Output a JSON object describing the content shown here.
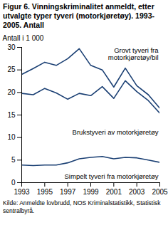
{
  "chart_data": {
    "type": "line",
    "title": "Figur 6. Vinningskriminalitet anmeldt, etter utvalgte typer tyveri (motorkjøretøy). 1993-2005. Antall",
    "y_label": "Antall i 1 000",
    "source": "Kilde: Anmeldte lovbrudd, NOS Kriminalstatistikk, Statistisk sentralbyrå.",
    "x": [
      1993,
      1994,
      1995,
      1996,
      1997,
      1998,
      1999,
      2000,
      2001,
      2002,
      2003,
      2004,
      2005
    ],
    "series": [
      {
        "name": "Grovt tyveri fra motorkjøretøy/bil",
        "color": "#1a3f73",
        "values": [
          24,
          25.3,
          26.7,
          26,
          27.5,
          29.7,
          26,
          25,
          21.2,
          25.4,
          21.5,
          19.5,
          16.5
        ]
      },
      {
        "name": "Brukstyveri av motorkjøretøy",
        "color": "#1a3f73",
        "values": [
          19.8,
          19.5,
          20.9,
          19.9,
          18.5,
          19.8,
          19.3,
          21.3,
          18.7,
          22.6,
          20.2,
          18.2,
          15.4
        ]
      },
      {
        "name": "Simpelt tyveri fra motorkjøretøy",
        "color": "#1a3f73",
        "values": [
          3.9,
          3.8,
          3.9,
          3.9,
          4.4,
          5.3,
          5.6,
          5.8,
          5.3,
          5.6,
          5.5,
          5,
          4.5
        ]
      }
    ],
    "xlim": [
      1993,
      2005
    ],
    "xticks": [
      1993,
      1995,
      1997,
      1999,
      2001,
      2003,
      2005
    ],
    "ylim": [
      0,
      30
    ],
    "yticks": [
      0,
      5,
      10,
      15,
      20,
      25,
      30
    ],
    "grid": false
  }
}
